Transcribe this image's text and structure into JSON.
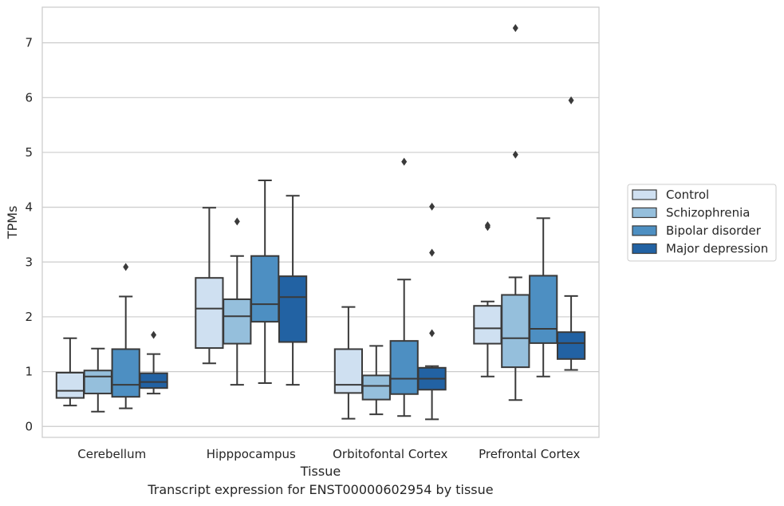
{
  "caption": "Transcript expression for ENST00000602954 by tissue",
  "colors": {
    "Control": "#cfe0f1",
    "Schizophrenia": "#95bfdc",
    "Bipolar disorder": "#4d8fc2",
    "Major depression": "#2262a3"
  },
  "chart_data": {
    "type": "box",
    "xlabel": "Tissue",
    "ylabel": "TPMs",
    "ylim": [
      -0.2,
      7.65
    ],
    "yticks": [
      0,
      1,
      2,
      3,
      4,
      5,
      6,
      7
    ],
    "grid": true,
    "legend_position": "right",
    "categories": [
      "Cerebellum",
      "Hipppocampus",
      "Orbitofontal Cortex",
      "Prefrontal Cortex"
    ],
    "series": [
      {
        "name": "Control",
        "boxes": [
          {
            "whisker_low": 0.38,
            "q1": 0.52,
            "median": 0.65,
            "q3": 0.98,
            "whisker_high": 1.61,
            "outliers": []
          },
          {
            "whisker_low": 1.15,
            "q1": 1.43,
            "median": 2.15,
            "q3": 2.71,
            "whisker_high": 3.99,
            "outliers": []
          },
          {
            "whisker_low": 0.14,
            "q1": 0.61,
            "median": 0.76,
            "q3": 1.41,
            "whisker_high": 2.18,
            "outliers": []
          },
          {
            "whisker_low": 0.91,
            "q1": 1.51,
            "median": 1.79,
            "q3": 2.2,
            "whisker_high": 2.28,
            "outliers": [
              3.64,
              3.67
            ]
          }
        ]
      },
      {
        "name": "Schizophrenia",
        "boxes": [
          {
            "whisker_low": 0.27,
            "q1": 0.6,
            "median": 0.91,
            "q3": 1.02,
            "whisker_high": 1.42,
            "outliers": []
          },
          {
            "whisker_low": 0.76,
            "q1": 1.51,
            "median": 2.01,
            "q3": 2.32,
            "whisker_high": 3.11,
            "outliers": [
              3.74
            ]
          },
          {
            "whisker_low": 0.22,
            "q1": 0.49,
            "median": 0.74,
            "q3": 0.93,
            "whisker_high": 1.47,
            "outliers": []
          },
          {
            "whisker_low": 0.48,
            "q1": 1.08,
            "median": 1.61,
            "q3": 2.4,
            "whisker_high": 2.72,
            "outliers": [
              4.96,
              7.27
            ]
          }
        ]
      },
      {
        "name": "Bipolar disorder",
        "boxes": [
          {
            "whisker_low": 0.33,
            "q1": 0.54,
            "median": 0.76,
            "q3": 1.41,
            "whisker_high": 2.37,
            "outliers": [
              2.91
            ]
          },
          {
            "whisker_low": 0.79,
            "q1": 1.91,
            "median": 2.23,
            "q3": 3.11,
            "whisker_high": 4.49,
            "outliers": []
          },
          {
            "whisker_low": 0.19,
            "q1": 0.59,
            "median": 0.87,
            "q3": 1.56,
            "whisker_high": 2.68,
            "outliers": [
              4.83
            ]
          },
          {
            "whisker_low": 0.91,
            "q1": 1.52,
            "median": 1.78,
            "q3": 2.75,
            "whisker_high": 3.8,
            "outliers": []
          }
        ]
      },
      {
        "name": "Major depression",
        "boxes": [
          {
            "whisker_low": 0.6,
            "q1": 0.7,
            "median": 0.81,
            "q3": 0.97,
            "whisker_high": 1.32,
            "outliers": [
              1.67
            ]
          },
          {
            "whisker_low": 0.76,
            "q1": 1.54,
            "median": 2.36,
            "q3": 2.74,
            "whisker_high": 4.21,
            "outliers": []
          },
          {
            "whisker_low": 0.13,
            "q1": 0.67,
            "median": 0.87,
            "q3": 1.07,
            "whisker_high": 1.1,
            "outliers": [
              1.7,
              3.17,
              4.01
            ]
          },
          {
            "whisker_low": 1.03,
            "q1": 1.23,
            "median": 1.52,
            "q3": 1.72,
            "whisker_high": 2.38,
            "outliers": [
              5.95
            ]
          }
        ]
      }
    ]
  }
}
